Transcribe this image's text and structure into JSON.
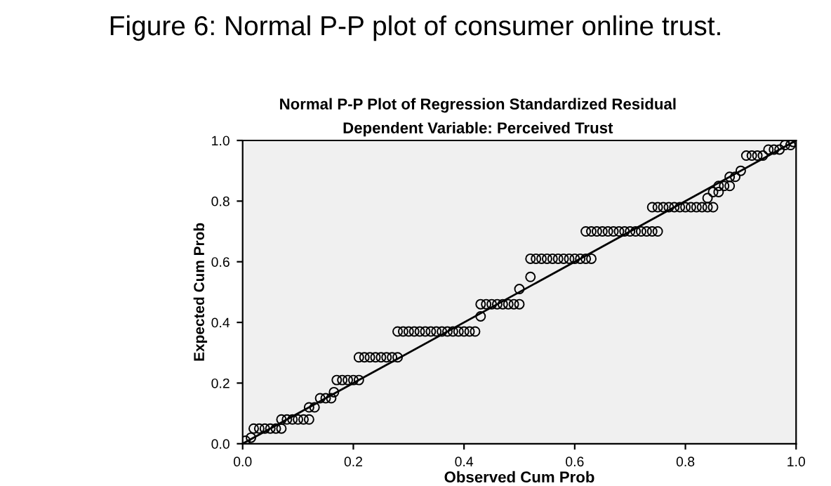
{
  "chart_data": {
    "type": "scatter",
    "title": "Normal P-P Plot of Regression Standardized Residual",
    "subtitle": "Dependent Variable: Perceived Trust",
    "annotations": [
      "Figure 6: Normal P-P plot of consumer online trust."
    ],
    "xlabel": "Observed Cum Prob",
    "ylabel": "Expected Cum Prob",
    "xlim": [
      0,
      1
    ],
    "ylim": [
      0,
      1
    ],
    "xticks": [
      {
        "value": 0,
        "label": "0.0"
      },
      0.2,
      0.4,
      0.6,
      0.8,
      {
        "value": 1,
        "label": "1.0"
      }
    ],
    "yticks": [
      {
        "value": 0,
        "label": "0.0"
      },
      0.2,
      0.4,
      0.6,
      0.8,
      {
        "value": 1,
        "label": "1.0"
      }
    ],
    "grid": false,
    "legend": false,
    "series": [
      {
        "color": "#000000",
        "marker": "circle",
        "x": [
          0.005,
          0.015,
          0.02,
          0.03,
          0.04,
          0.05,
          0.06,
          0.07,
          0.07,
          0.08,
          0.09,
          0.1,
          0.11,
          0.12,
          0.12,
          0.13,
          0.14,
          0.15,
          0.16,
          0.165,
          0.17,
          0.18,
          0.19,
          0.2,
          0.21,
          0.21,
          0.22,
          0.23,
          0.24,
          0.25,
          0.26,
          0.27,
          0.28,
          0.28,
          0.29,
          0.3,
          0.31,
          0.32,
          0.33,
          0.34,
          0.35,
          0.36,
          0.37,
          0.38,
          0.39,
          0.4,
          0.41,
          0.42,
          0.43,
          0.43,
          0.44,
          0.45,
          0.46,
          0.47,
          0.48,
          0.49,
          0.5,
          0.5,
          0.52,
          0.52,
          0.53,
          0.54,
          0.55,
          0.56,
          0.57,
          0.58,
          0.59,
          0.6,
          0.61,
          0.62,
          0.63,
          0.62,
          0.63,
          0.64,
          0.65,
          0.66,
          0.67,
          0.68,
          0.69,
          0.7,
          0.71,
          0.72,
          0.73,
          0.74,
          0.75,
          0.74,
          0.75,
          0.76,
          0.77,
          0.78,
          0.79,
          0.8,
          0.81,
          0.82,
          0.83,
          0.84,
          0.85,
          0.84,
          0.85,
          0.86,
          0.86,
          0.87,
          0.88,
          0.88,
          0.89,
          0.9,
          0.91,
          0.92,
          0.93,
          0.94,
          0.95,
          0.96,
          0.97,
          0.98,
          0.99,
          0.995
        ],
        "values": [
          0.01,
          0.02,
          0.05,
          0.05,
          0.05,
          0.05,
          0.05,
          0.05,
          0.08,
          0.08,
          0.08,
          0.08,
          0.08,
          0.08,
          0.12,
          0.12,
          0.15,
          0.15,
          0.15,
          0.17,
          0.21,
          0.21,
          0.21,
          0.21,
          0.21,
          0.285,
          0.285,
          0.285,
          0.285,
          0.285,
          0.285,
          0.285,
          0.285,
          0.37,
          0.37,
          0.37,
          0.37,
          0.37,
          0.37,
          0.37,
          0.37,
          0.37,
          0.37,
          0.37,
          0.37,
          0.37,
          0.37,
          0.37,
          0.42,
          0.46,
          0.46,
          0.46,
          0.46,
          0.46,
          0.46,
          0.46,
          0.46,
          0.51,
          0.55,
          0.61,
          0.61,
          0.61,
          0.61,
          0.61,
          0.61,
          0.61,
          0.61,
          0.61,
          0.61,
          0.61,
          0.61,
          0.7,
          0.7,
          0.7,
          0.7,
          0.7,
          0.7,
          0.7,
          0.7,
          0.7,
          0.7,
          0.7,
          0.7,
          0.7,
          0.7,
          0.78,
          0.78,
          0.78,
          0.78,
          0.78,
          0.78,
          0.78,
          0.78,
          0.78,
          0.78,
          0.78,
          0.78,
          0.81,
          0.83,
          0.83,
          0.85,
          0.85,
          0.85,
          0.88,
          0.88,
          0.9,
          0.95,
          0.95,
          0.95,
          0.95,
          0.97,
          0.97,
          0.97,
          0.985,
          0.985,
          0.995
        ]
      },
      {
        "type": "line",
        "color": "#000000",
        "marker": "none",
        "x": [
          0,
          1
        ],
        "values": [
          0,
          1
        ]
      }
    ]
  }
}
